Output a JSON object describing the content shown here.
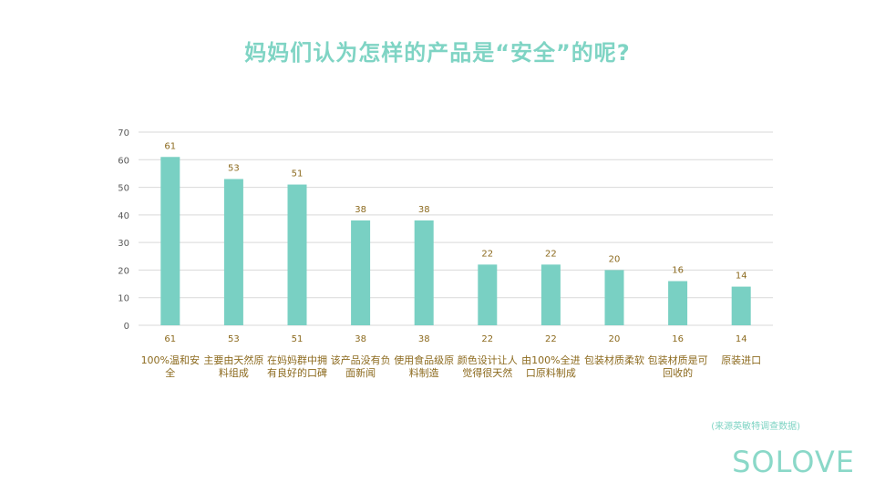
{
  "title": "妈妈们认为怎样的产品是“安全”的呢?",
  "source_note": "(来源英敏特调查数据)",
  "logo_text": "SOLOVE",
  "colors": {
    "bar": "#79d0c3",
    "title": "#7fd4c4",
    "label": "#8c6a1e",
    "grid": "#d9d9d9",
    "axis_text": "#595959"
  },
  "chart_data": {
    "type": "bar",
    "title": "",
    "xlabel": "",
    "ylabel": "",
    "ylim": [
      0,
      70
    ],
    "yticks": [
      0,
      10,
      20,
      30,
      40,
      50,
      60,
      70
    ],
    "grid": true,
    "categories": [
      "100%温和安全",
      "主要由天然原料组成",
      "在妈妈群中拥有良好的口碑",
      "该产品没有负面新闻",
      "使用食品级原料制造",
      "颜色设计让人觉得很天然",
      "由100%全进口原料制成",
      "包装材质柔软",
      "包装材质是可回收的",
      "原装进口"
    ],
    "values": [
      61,
      53,
      51,
      38,
      38,
      22,
      22,
      20,
      16,
      14
    ]
  }
}
